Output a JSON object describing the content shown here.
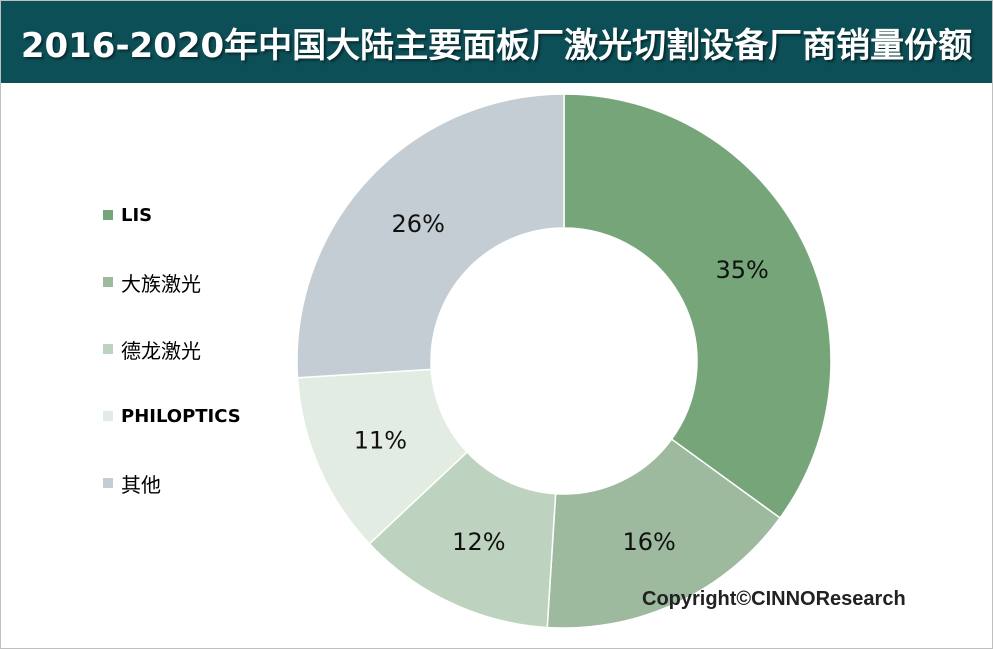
{
  "title": "2016-2020年中国大陆主要面板厂激光切割设备厂商销量份额",
  "copyright": "Copyright©CINNOResearch",
  "chart_data": {
    "type": "pie",
    "donut": true,
    "title": "2016-2020年中国大陆主要面板厂激光切割设备厂商销量份额",
    "legend_position": "left",
    "categories": [
      "LIS",
      "大族激光",
      "德龙激光",
      "PHILOPTICS",
      "其他"
    ],
    "values": [
      35,
      16,
      12,
      11,
      26
    ],
    "labels": [
      "35%",
      "16%",
      "12%",
      "11%",
      "26%"
    ],
    "colors": [
      "#75a578",
      "#9db99e",
      "#bed3bf",
      "#e3ece3",
      "#c4cdd3"
    ]
  }
}
